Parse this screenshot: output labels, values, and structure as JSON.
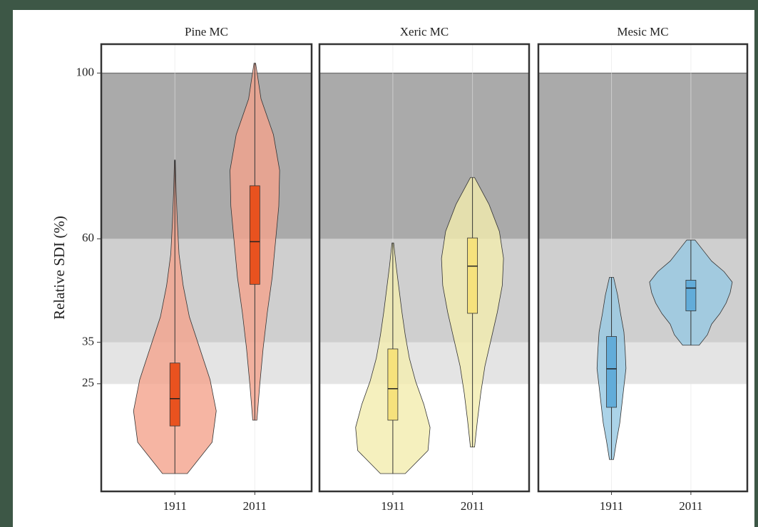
{
  "chart_data": {
    "type": "violin",
    "y_label": "Relative SDI (%)",
    "ylim": [
      -1,
      107
    ],
    "yticks": [
      25,
      35,
      60,
      100
    ],
    "grid": true,
    "bands": [
      {
        "from": 25,
        "to": 35,
        "color": "#e4e4e4"
      },
      {
        "from": 35,
        "to": 60,
        "color": "#cfcfcf"
      },
      {
        "from": 60,
        "to": 100,
        "color": "#aaaaaa"
      }
    ],
    "panels": [
      {
        "title": "Pine MC",
        "categories": [
          "1911",
          "2011"
        ],
        "violin_color": "#f4a28c",
        "box_color": "#e9521f",
        "groups": [
          {
            "min": 3.3,
            "q1": 14.8,
            "median": 21.4,
            "q3": 30,
            "max": 79,
            "density": [
              0.3,
              0.9,
              1.0,
              0.85,
              0.6,
              0.35,
              0.2,
              0.1,
              0.06,
              0.03,
              0.01
            ]
          },
          {
            "min": 16.2,
            "q1": 49,
            "median": 59.3,
            "q3": 72.8,
            "max": 102.4,
            "density": [
              0.05,
              0.12,
              0.2,
              0.3,
              0.42,
              0.5,
              0.58,
              0.6,
              0.45,
              0.15,
              0.02
            ]
          }
        ]
      },
      {
        "title": "Xeric MC",
        "categories": [
          "1911",
          "2011"
        ],
        "violin_color": "#f2ecae",
        "box_color": "#f6e27c",
        "groups": [
          {
            "min": 3.3,
            "q1": 16.2,
            "median": 23.8,
            "q3": 33.4,
            "max": 59,
            "density": [
              0.3,
              0.85,
              0.9,
              0.75,
              0.55,
              0.4,
              0.3,
              0.22,
              0.15,
              0.08,
              0.02
            ]
          },
          {
            "min": 9.7,
            "q1": 42,
            "median": 53.4,
            "q3": 60.2,
            "max": 74.8,
            "density": [
              0.05,
              0.12,
              0.2,
              0.3,
              0.45,
              0.6,
              0.72,
              0.75,
              0.65,
              0.4,
              0.05
            ]
          }
        ]
      },
      {
        "title": "Mesic MC",
        "categories": [
          "1911",
          "2011"
        ],
        "violin_color": "#96c8e2",
        "box_color": "#62acd9",
        "groups": [
          {
            "min": 6.7,
            "q1": 19.3,
            "median": 28.6,
            "q3": 36.4,
            "max": 50.7,
            "density": [
              0.05,
              0.12,
              0.2,
              0.25,
              0.3,
              0.35,
              0.33,
              0.3,
              0.22,
              0.15,
              0.05
            ]
          },
          {
            "min": 34.3,
            "q1": 42.6,
            "median": 48.1,
            "q3": 50,
            "max": 59.7,
            "density": [
              0.2,
              0.4,
              0.5,
              0.7,
              0.85,
              0.95,
              1.0,
              0.8,
              0.5,
              0.3,
              0.1
            ]
          }
        ]
      }
    ]
  }
}
